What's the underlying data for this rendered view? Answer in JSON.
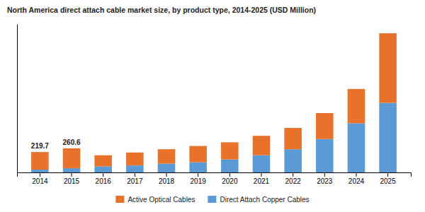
{
  "chart_data": {
    "type": "bar",
    "stacked": true,
    "title": "North America direct attach cable market size, by product type, 2014-2025  (USD Million)",
    "categories": [
      "2014",
      "2015",
      "2016",
      "2017",
      "2018",
      "2019",
      "2020",
      "2021",
      "2022",
      "2023",
      "2024",
      "2025"
    ],
    "series": [
      {
        "name": "Direct Attach Copper Cables",
        "color": "#5B9BD5",
        "values": [
          30.0,
          45.0,
          65.0,
          75.0,
          95.0,
          110.0,
          140.0,
          185.0,
          250.0,
          360.0,
          530.0,
          750.0
        ]
      },
      {
        "name": "Active Optical Cables",
        "color": "#E8722A",
        "values": [
          189.7,
          215.6,
          120.0,
          140.0,
          155.0,
          175.0,
          185.0,
          210.0,
          230.0,
          280.0,
          370.0,
          750.0
        ]
      }
    ],
    "annotations": [
      {
        "category": "2014",
        "text": "219.7"
      },
      {
        "category": "2015",
        "text": "260.6"
      }
    ],
    "ylim": [
      0,
      1600
    ],
    "tick_labels": "x",
    "grid": false,
    "legend": "bottom"
  }
}
